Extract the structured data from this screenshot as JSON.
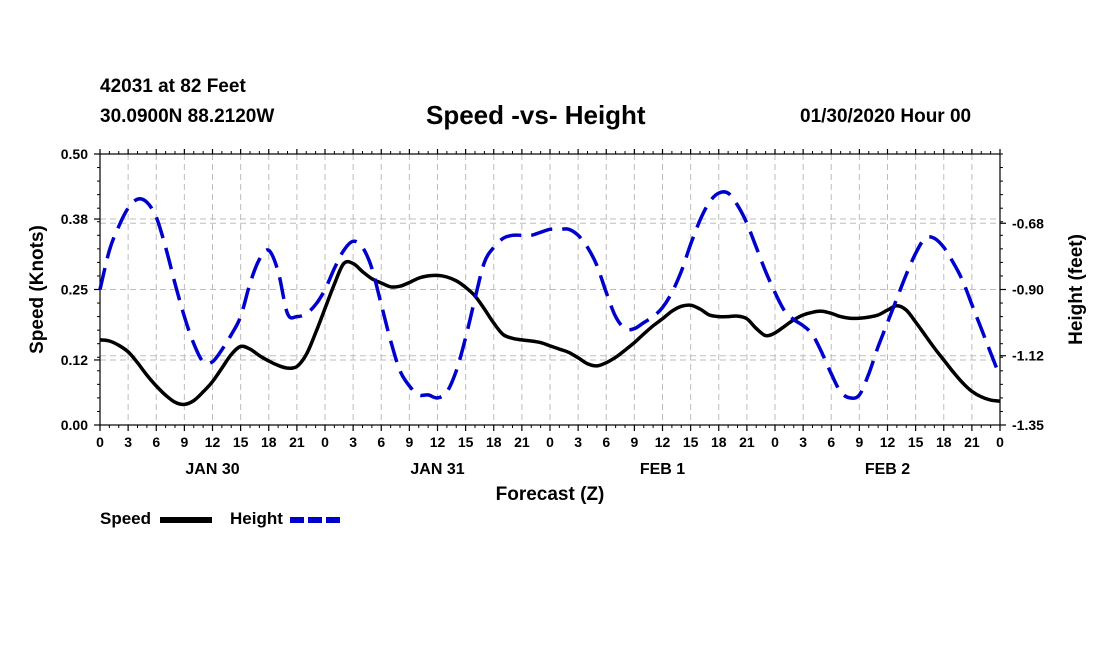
{
  "header": {
    "station": "42031 at 82 Feet",
    "coords": "30.0900N 88.2120W",
    "title": "Speed -vs- Height",
    "run": "01/30/2020 Hour 00"
  },
  "chart_data": {
    "type": "line",
    "title": "Speed -vs- Height",
    "xlabel": "Forecast (Z)",
    "ylabel_left": "Speed (Knots)",
    "ylabel_right": "Height (feet)",
    "x_range_hours": [
      0,
      96
    ],
    "x_tick_labels": [
      "0",
      "3",
      "6",
      "9",
      "12",
      "15",
      "18",
      "21",
      "0",
      "3",
      "6",
      "9",
      "12",
      "15",
      "18",
      "21",
      "0",
      "3",
      "6",
      "9",
      "12",
      "15",
      "18",
      "21",
      "0",
      "3",
      "6",
      "9",
      "12",
      "15",
      "18",
      "21",
      "0"
    ],
    "day_labels": [
      {
        "label": "JAN 30",
        "hour": 12
      },
      {
        "label": "JAN 31",
        "hour": 36
      },
      {
        "label": "FEB 1",
        "hour": 60
      },
      {
        "label": "FEB 2",
        "hour": 84
      }
    ],
    "ylim_left": [
      0.0,
      0.5
    ],
    "y_ticks_left": [
      "0.00",
      "0.12",
      "0.25",
      "0.38",
      "0.50"
    ],
    "ylim_right": [
      -1.35,
      -0.45
    ],
    "y_ticks_right": [
      "-0.68",
      "-0.90",
      "-1.12",
      "-1.35"
    ],
    "grid": true,
    "series": [
      {
        "name": "Speed",
        "axis": "left",
        "color": "#000000",
        "style": "solid",
        "x": [
          0,
          1,
          2,
          3,
          4,
          5,
          6,
          7,
          8,
          9,
          10,
          11,
          12,
          13,
          14,
          15,
          16,
          17,
          18,
          19,
          20,
          21,
          22,
          23,
          24,
          25,
          26,
          27,
          28,
          29,
          30,
          31,
          32,
          33,
          34,
          35,
          36,
          37,
          38,
          39,
          40,
          41,
          42,
          43,
          44,
          45,
          46,
          47,
          48,
          49,
          50,
          51,
          52,
          53,
          54,
          55,
          56,
          57,
          58,
          59,
          60,
          61,
          62,
          63,
          64,
          65,
          66,
          67,
          68,
          69,
          70,
          71,
          72,
          73,
          74,
          75,
          76,
          77,
          78,
          79,
          80,
          81,
          82,
          83,
          84,
          85,
          86,
          87,
          88,
          89,
          90,
          91,
          92,
          93,
          94,
          95,
          96
        ],
        "values": [
          0.157,
          0.155,
          0.147,
          0.135,
          0.115,
          0.092,
          0.072,
          0.055,
          0.042,
          0.038,
          0.045,
          0.061,
          0.08,
          0.105,
          0.13,
          0.145,
          0.14,
          0.128,
          0.118,
          0.11,
          0.105,
          0.108,
          0.13,
          0.17,
          0.215,
          0.26,
          0.298,
          0.298,
          0.283,
          0.27,
          0.262,
          0.255,
          0.256,
          0.263,
          0.271,
          0.275,
          0.276,
          0.273,
          0.266,
          0.254,
          0.238,
          0.214,
          0.188,
          0.167,
          0.16,
          0.157,
          0.155,
          0.152,
          0.146,
          0.14,
          0.134,
          0.124,
          0.113,
          0.109,
          0.115,
          0.125,
          0.138,
          0.152,
          0.168,
          0.183,
          0.196,
          0.21,
          0.219,
          0.221,
          0.214,
          0.203,
          0.2,
          0.2,
          0.201,
          0.196,
          0.178,
          0.165,
          0.17,
          0.182,
          0.194,
          0.203,
          0.208,
          0.21,
          0.206,
          0.2,
          0.197,
          0.197,
          0.199,
          0.203,
          0.212,
          0.22,
          0.212,
          0.19,
          0.166,
          0.142,
          0.12,
          0.098,
          0.078,
          0.062,
          0.052,
          0.046,
          0.044
        ]
      },
      {
        "name": "Height",
        "axis": "right",
        "color": "#0000cc",
        "style": "dashed",
        "x": [
          0,
          1,
          2,
          3,
          4,
          5,
          6,
          7,
          8,
          9,
          10,
          11,
          12,
          13,
          14,
          15,
          16,
          17,
          18,
          19,
          20,
          21,
          22,
          23,
          24,
          25,
          26,
          27,
          28,
          29,
          30,
          31,
          32,
          33,
          34,
          35,
          36,
          37,
          38,
          39,
          40,
          41,
          42,
          43,
          44,
          45,
          46,
          47,
          48,
          49,
          50,
          51,
          52,
          53,
          54,
          55,
          56,
          57,
          58,
          59,
          60,
          61,
          62,
          63,
          64,
          65,
          66,
          67,
          68,
          69,
          70,
          71,
          72,
          73,
          74,
          75,
          76,
          77,
          78,
          79,
          80,
          81,
          82,
          83,
          84,
          85,
          86,
          87,
          88,
          89,
          90,
          91,
          92,
          93,
          94,
          95,
          96
        ],
        "values": [
          -0.9,
          -0.77,
          -0.69,
          -0.63,
          -0.6,
          -0.61,
          -0.66,
          -0.76,
          -0.88,
          -0.99,
          -1.08,
          -1.14,
          -1.14,
          -1.1,
          -1.05,
          -0.99,
          -0.88,
          -0.8,
          -0.77,
          -0.84,
          -0.98,
          -0.99,
          -0.98,
          -0.95,
          -0.9,
          -0.83,
          -0.77,
          -0.74,
          -0.76,
          -0.83,
          -0.95,
          -1.07,
          -1.17,
          -1.22,
          -1.25,
          -1.25,
          -1.26,
          -1.24,
          -1.17,
          -1.06,
          -0.93,
          -0.81,
          -0.76,
          -0.73,
          -0.72,
          -0.72,
          -0.72,
          -0.71,
          -0.7,
          -0.7,
          -0.7,
          -0.72,
          -0.76,
          -0.82,
          -0.91,
          -0.99,
          -1.03,
          -1.03,
          -1.01,
          -0.99,
          -0.96,
          -0.91,
          -0.84,
          -0.75,
          -0.67,
          -0.61,
          -0.58,
          -0.58,
          -0.62,
          -0.68,
          -0.76,
          -0.84,
          -0.91,
          -0.97,
          -1.0,
          -1.02,
          -1.05,
          -1.11,
          -1.18,
          -1.24,
          -1.26,
          -1.25,
          -1.18,
          -1.09,
          -1.01,
          -0.93,
          -0.85,
          -0.78,
          -0.73,
          -0.73,
          -0.76,
          -0.81,
          -0.87,
          -0.95,
          -1.03,
          -1.11,
          -1.19
        ]
      }
    ],
    "legend": [
      {
        "label": "Speed",
        "color": "#000000",
        "style": "solid"
      },
      {
        "label": "Height",
        "color": "#0000cc",
        "style": "dashed"
      }
    ]
  }
}
